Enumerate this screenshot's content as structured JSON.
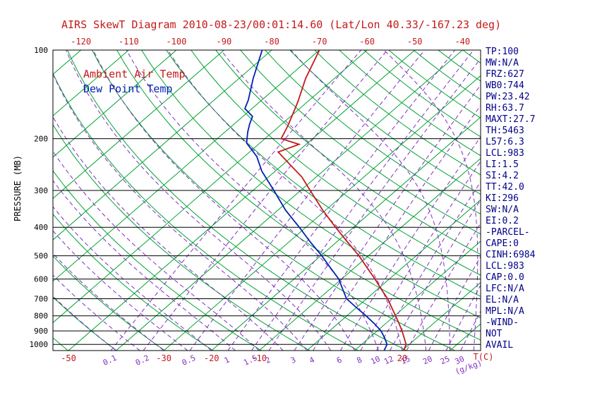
{
  "title": "AIRS SkewT Diagram 2010-08-23/00:01:14.60 (Lat/Lon 40.33/-167.23 deg)",
  "legend": {
    "series1": "Ambient Air Temp",
    "series2": "Dew Point Temp"
  },
  "axes": {
    "y_label": "PRESSURE (MB)",
    "x_label": "T(C)",
    "mixing_label": "(g/kg)",
    "pressure_ticks": [
      100,
      200,
      300,
      400,
      500,
      600,
      700,
      800,
      900,
      1000
    ],
    "top_temp_ticks": [
      -120,
      -110,
      -100,
      -90,
      -80,
      -70,
      -60,
      -50,
      -40
    ],
    "bottom_temp_ticks": [
      -50,
      -30,
      -20,
      -10,
      20
    ]
  },
  "stats_panel": {
    "lines": [
      "TP:100",
      "MW:N/A",
      "FRZ:627",
      "WB0:744",
      "PW:23.42",
      "RH:63.7",
      "MAXT:27.7",
      "TH:5463",
      "L57:6.3",
      "LCL:983",
      "LI:1.5",
      "SI:4.2",
      "TT:42.0",
      "KI:296",
      "SW:N/A",
      "EI:0.2",
      "-PARCEL-",
      "CAPE:0",
      "CINH:6984",
      "LCL:983",
      "CAP:0.0",
      "LFC:N/A",
      "EL:N/A",
      "MPL:N/A",
      "-WIND-",
      "NOT",
      "AVAIL"
    ]
  },
  "colors": {
    "red": "#c41a1a",
    "green": "#00a332",
    "purple": "#8030c0",
    "blue": "#0022b4",
    "navy": "#000088",
    "black": "#000000"
  },
  "chart_data": {
    "type": "line",
    "subtype": "skew-t log-p thermodynamic diagram",
    "title": "AIRS SkewT Diagram 2010-08-23/00:01:14.60 (Lat/Lon 40.33/-167.23 deg)",
    "xlabel": "T(C)",
    "ylabel": "PRESSURE (MB)",
    "pressure_range_mb": [
      100,
      1050
    ],
    "pressure_scale": "log",
    "grid": true,
    "legend_position": "upper-left-inside",
    "isotherms_c": [
      -120,
      -110,
      -100,
      -90,
      -80,
      -70,
      -60,
      -50,
      -40,
      -30,
      -20,
      -10,
      0,
      10,
      20,
      30
    ],
    "dry_adiabats_theta_k": [
      220,
      230,
      240,
      250,
      260,
      270,
      280,
      290,
      300,
      310,
      320,
      330,
      340,
      350,
      360,
      370,
      380,
      390,
      400,
      410,
      420,
      430,
      440,
      450
    ],
    "mixing_ratio_g_kg": [
      0.1,
      0.2,
      0.5,
      1,
      1.5,
      2,
      3,
      4,
      6,
      8,
      10,
      12,
      15,
      20,
      25,
      30
    ],
    "moist_adiabat_start_c": [
      -40,
      -35,
      -30,
      -25,
      -20,
      -15,
      -10,
      -5,
      0,
      5,
      10,
      15,
      20,
      25,
      30,
      35,
      40
    ],
    "moist_adiabat_start_pressure_mb": 1050,
    "series": [
      {
        "name": "Ambient Air Temp",
        "color": "#c41a1a",
        "points_p_t": [
          [
            1050,
            20.3
          ],
          [
            1000,
            19.3
          ],
          [
            950,
            17.3
          ],
          [
            900,
            15.2
          ],
          [
            850,
            12.8
          ],
          [
            800,
            10.2
          ],
          [
            750,
            7.4
          ],
          [
            700,
            4.4
          ],
          [
            650,
            0.8
          ],
          [
            600,
            -3.0
          ],
          [
            550,
            -7.3
          ],
          [
            500,
            -12.0
          ],
          [
            450,
            -17.6
          ],
          [
            400,
            -23.8
          ],
          [
            350,
            -30.6
          ],
          [
            300,
            -38.0
          ],
          [
            270,
            -43.0
          ],
          [
            245,
            -48.5
          ],
          [
            222,
            -54.0
          ],
          [
            209,
            -51.5
          ],
          [
            200,
            -56.6
          ],
          [
            180,
            -58.4
          ],
          [
            150,
            -62.0
          ],
          [
            125,
            -66.0
          ],
          [
            100,
            -70.0
          ]
        ]
      },
      {
        "name": "Dew Point Temp",
        "color": "#0022b4",
        "points_p_t": [
          [
            1050,
            16.2
          ],
          [
            1000,
            15.3
          ],
          [
            950,
            13.2
          ],
          [
            900,
            10.8
          ],
          [
            850,
            7.6
          ],
          [
            800,
            4.0
          ],
          [
            750,
            0.0
          ],
          [
            700,
            -4.2
          ],
          [
            650,
            -7.3
          ],
          [
            600,
            -10.6
          ],
          [
            550,
            -15.0
          ],
          [
            500,
            -19.8
          ],
          [
            450,
            -25.4
          ],
          [
            400,
            -31.4
          ],
          [
            350,
            -38.4
          ],
          [
            300,
            -45.6
          ],
          [
            258,
            -52.8
          ],
          [
            230,
            -57.4
          ],
          [
            207,
            -62.8
          ],
          [
            190,
            -65.2
          ],
          [
            178,
            -66.8
          ],
          [
            168,
            -68.0
          ],
          [
            158,
            -71.5
          ],
          [
            148,
            -72.8
          ],
          [
            125,
            -77.0
          ],
          [
            100,
            -82.0
          ]
        ]
      }
    ]
  }
}
